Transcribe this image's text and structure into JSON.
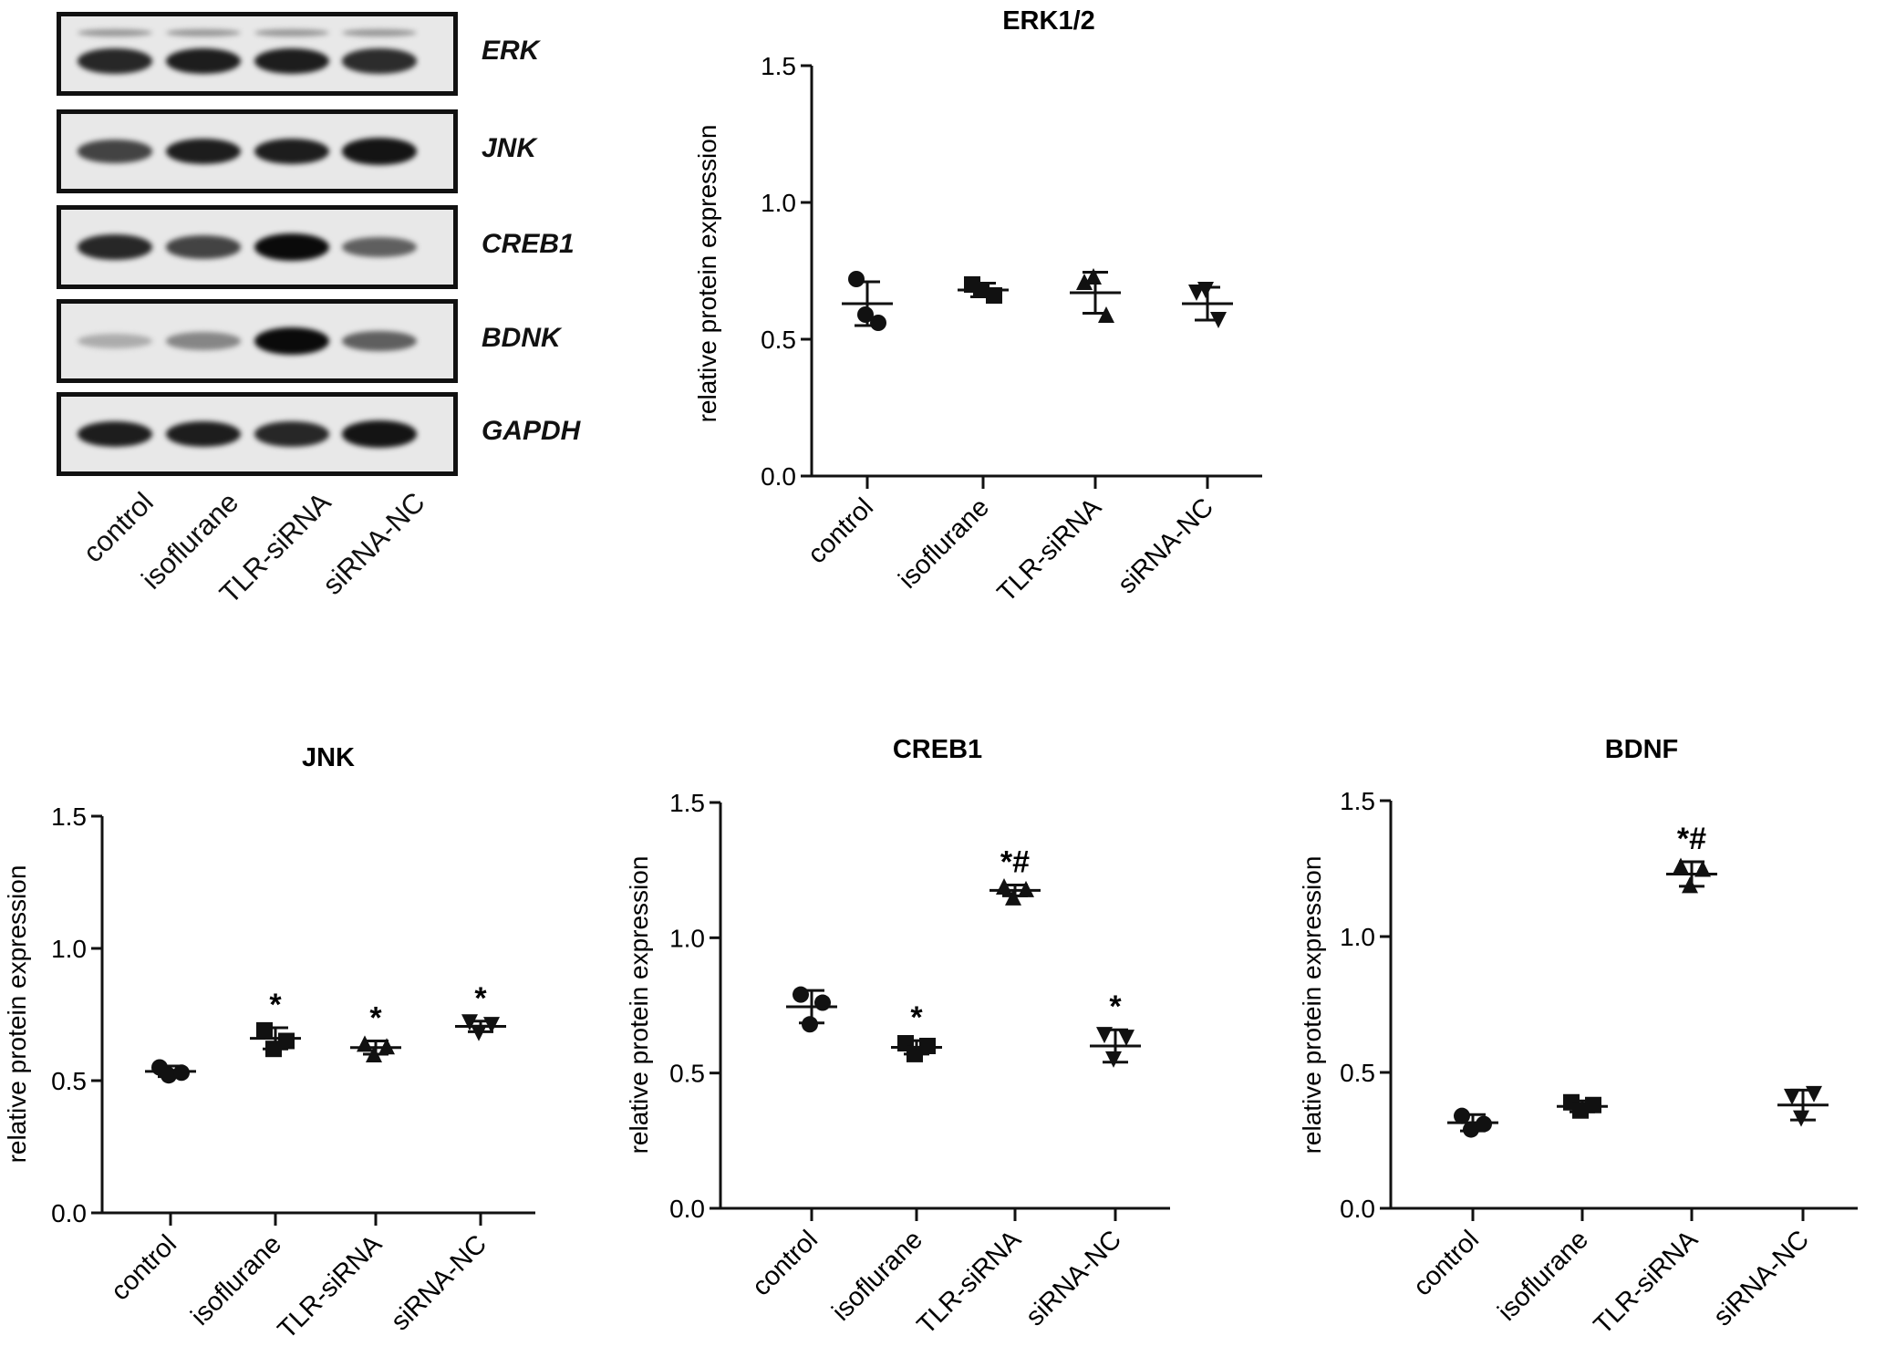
{
  "blot": {
    "rows": [
      {
        "label": "ERK",
        "intensities": [
          0.85,
          0.9,
          0.9,
          0.82
        ],
        "double": true
      },
      {
        "label": "JNK",
        "intensities": [
          0.7,
          0.9,
          0.9,
          0.95
        ],
        "double": false
      },
      {
        "label": "CREB1",
        "intensities": [
          0.85,
          0.7,
          1.0,
          0.55
        ],
        "double": false
      },
      {
        "label": "BDNK",
        "intensities": [
          0.15,
          0.35,
          1.0,
          0.55
        ],
        "double": false
      },
      {
        "label": "GAPDH",
        "intensities": [
          0.9,
          0.9,
          0.85,
          0.95
        ],
        "double": false
      }
    ],
    "lanes": [
      "control",
      "isoflurane",
      "TLR-siRNA",
      "siRNA-NC"
    ]
  },
  "chart_data": [
    {
      "type": "scatter",
      "title": "ERK1/2",
      "ylabel": "relative protein expression",
      "ylim": [
        0,
        1.5
      ],
      "yticks": [
        "0.0",
        "0.5",
        "1.0",
        "1.5"
      ],
      "categories": [
        "control",
        "isoflurane",
        "TLR-siRNA",
        "siRNA-NC"
      ],
      "markers": [
        "circle",
        "square",
        "triangle-up",
        "triangle-down"
      ],
      "groups": [
        {
          "points": [
            0.72,
            0.59,
            0.56
          ],
          "mean": 0.63,
          "sd": 0.08,
          "sig": ""
        },
        {
          "points": [
            0.7,
            0.68,
            0.66
          ],
          "mean": 0.68,
          "sd": 0.025,
          "sig": ""
        },
        {
          "points": [
            0.71,
            0.73,
            0.59
          ],
          "mean": 0.67,
          "sd": 0.075,
          "sig": ""
        },
        {
          "points": [
            0.67,
            0.68,
            0.57
          ],
          "mean": 0.63,
          "sd": 0.06,
          "sig": ""
        }
      ]
    },
    {
      "type": "scatter",
      "title": "JNK",
      "ylabel": "relative protein expression",
      "ylim": [
        0,
        1.5
      ],
      "yticks": [
        "0.0",
        "0.5",
        "1.0",
        "1.5"
      ],
      "categories": [
        "control",
        "isoflurane",
        "TLR-siRNA",
        "siRNA-NC"
      ],
      "markers": [
        "circle",
        "square",
        "triangle-up",
        "triangle-down"
      ],
      "groups": [
        {
          "points": [
            0.55,
            0.52,
            0.53
          ],
          "mean": 0.535,
          "sd": 0.02,
          "sig": ""
        },
        {
          "points": [
            0.69,
            0.62,
            0.65
          ],
          "mean": 0.66,
          "sd": 0.04,
          "sig": "*"
        },
        {
          "points": [
            0.64,
            0.6,
            0.63
          ],
          "mean": 0.625,
          "sd": 0.025,
          "sig": "*"
        },
        {
          "points": [
            0.72,
            0.68,
            0.71
          ],
          "mean": 0.705,
          "sd": 0.02,
          "sig": "*"
        }
      ]
    },
    {
      "type": "scatter",
      "title": "CREB1",
      "ylabel": "relative protein expression",
      "ylim": [
        0,
        1.5
      ],
      "yticks": [
        "0.0",
        "0.5",
        "1.0",
        "1.5"
      ],
      "categories": [
        "control",
        "isoflurane",
        "TLR-siRNA",
        "siRNA-NC"
      ],
      "markers": [
        "circle",
        "square",
        "triangle-up",
        "triangle-down"
      ],
      "groups": [
        {
          "points": [
            0.79,
            0.68,
            0.76
          ],
          "mean": 0.745,
          "sd": 0.06,
          "sig": ""
        },
        {
          "points": [
            0.61,
            0.57,
            0.6
          ],
          "mean": 0.595,
          "sd": 0.025,
          "sig": "*"
        },
        {
          "points": [
            1.19,
            1.15,
            1.18
          ],
          "mean": 1.175,
          "sd": 0.02,
          "sig": "*#"
        },
        {
          "points": [
            0.64,
            0.55,
            0.63
          ],
          "mean": 0.6,
          "sd": 0.06,
          "sig": "*"
        }
      ]
    },
    {
      "type": "scatter",
      "title": "BDNF",
      "ylabel": "relative protein expression",
      "ylim": [
        0,
        1.5
      ],
      "yticks": [
        "0.0",
        "0.5",
        "1.0",
        "1.5"
      ],
      "categories": [
        "control",
        "isoflurane",
        "TLR-siRNA",
        "siRNA-NC"
      ],
      "markers": [
        "circle",
        "square",
        "triangle-up",
        "triangle-down"
      ],
      "groups": [
        {
          "points": [
            0.34,
            0.29,
            0.31
          ],
          "mean": 0.315,
          "sd": 0.03,
          "sig": ""
        },
        {
          "points": [
            0.39,
            0.36,
            0.38
          ],
          "mean": 0.375,
          "sd": 0.02,
          "sig": ""
        },
        {
          "points": [
            1.26,
            1.19,
            1.25
          ],
          "mean": 1.23,
          "sd": 0.045,
          "sig": "*#"
        },
        {
          "points": [
            0.41,
            0.33,
            0.42
          ],
          "mean": 0.38,
          "sd": 0.055,
          "sig": ""
        }
      ]
    }
  ]
}
